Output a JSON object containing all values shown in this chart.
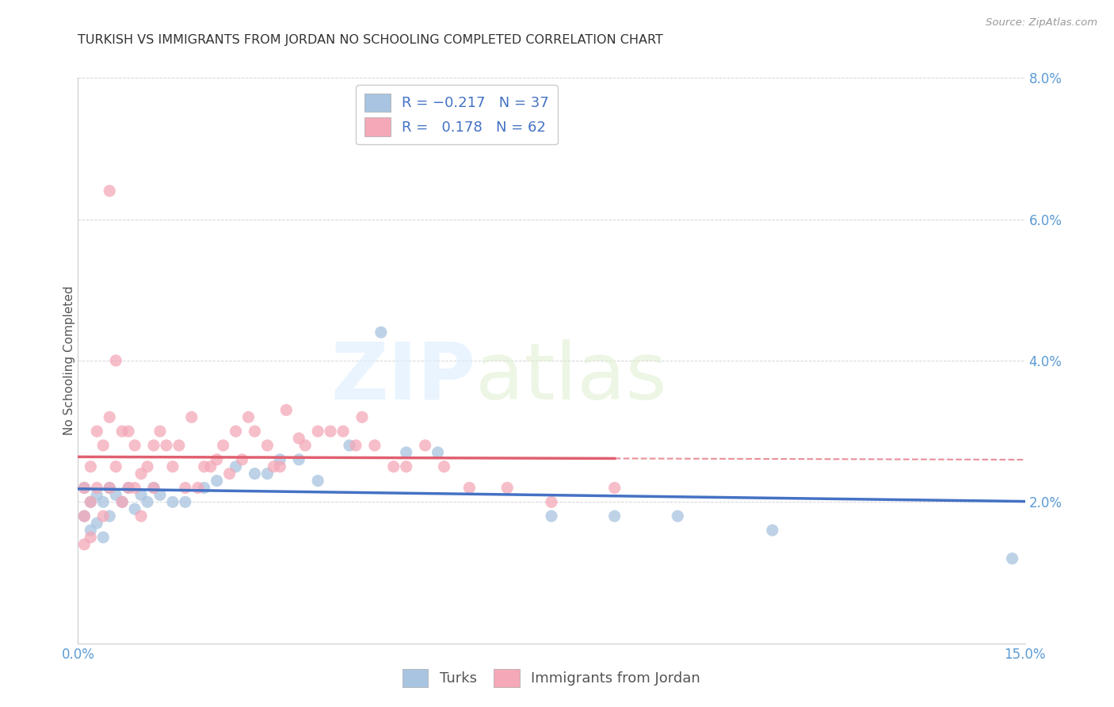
{
  "title": "TURKISH VS IMMIGRANTS FROM JORDAN NO SCHOOLING COMPLETED CORRELATION CHART",
  "source": "Source: ZipAtlas.com",
  "ylabel": "No Schooling Completed",
  "xlim": [
    0,
    0.15
  ],
  "ylim": [
    0,
    0.08
  ],
  "xticks": [
    0.0,
    0.05,
    0.1,
    0.15
  ],
  "xticklabels": [
    "0.0%",
    "",
    "",
    "15.0%"
  ],
  "yticks": [
    0.0,
    0.02,
    0.04,
    0.06,
    0.08
  ],
  "yticklabels": [
    "",
    "2.0%",
    "4.0%",
    "6.0%",
    "8.0%"
  ],
  "blue_R": -0.217,
  "blue_N": 37,
  "pink_R": 0.178,
  "pink_N": 62,
  "blue_scatter_color": "#a8c4e0",
  "pink_scatter_color": "#f4a8b8",
  "blue_line_color": "#4472c4",
  "pink_line_color": "#e06070",
  "legend_label_blue": "Turks",
  "legend_label_pink": "Immigrants from Jordan",
  "turks_x": [
    0.001,
    0.001,
    0.002,
    0.002,
    0.003,
    0.003,
    0.004,
    0.004,
    0.005,
    0.005,
    0.006,
    0.007,
    0.008,
    0.009,
    0.01,
    0.011,
    0.012,
    0.013,
    0.015,
    0.017,
    0.02,
    0.022,
    0.025,
    0.028,
    0.03,
    0.032,
    0.035,
    0.038,
    0.043,
    0.048,
    0.052,
    0.057,
    0.075,
    0.085,
    0.095,
    0.11,
    0.148
  ],
  "turks_y": [
    0.022,
    0.018,
    0.02,
    0.016,
    0.021,
    0.017,
    0.02,
    0.015,
    0.022,
    0.018,
    0.021,
    0.02,
    0.022,
    0.019,
    0.021,
    0.02,
    0.022,
    0.021,
    0.02,
    0.02,
    0.022,
    0.023,
    0.025,
    0.024,
    0.024,
    0.026,
    0.026,
    0.023,
    0.028,
    0.044,
    0.027,
    0.027,
    0.018,
    0.018,
    0.018,
    0.016,
    0.012
  ],
  "jordan_x": [
    0.001,
    0.001,
    0.001,
    0.002,
    0.002,
    0.002,
    0.003,
    0.003,
    0.004,
    0.004,
    0.005,
    0.005,
    0.005,
    0.006,
    0.006,
    0.007,
    0.007,
    0.008,
    0.008,
    0.009,
    0.009,
    0.01,
    0.01,
    0.011,
    0.012,
    0.012,
    0.013,
    0.014,
    0.015,
    0.016,
    0.017,
    0.018,
    0.019,
    0.02,
    0.021,
    0.022,
    0.023,
    0.024,
    0.025,
    0.026,
    0.027,
    0.028,
    0.03,
    0.031,
    0.032,
    0.033,
    0.035,
    0.036,
    0.038,
    0.04,
    0.042,
    0.044,
    0.045,
    0.047,
    0.05,
    0.052,
    0.055,
    0.058,
    0.062,
    0.068,
    0.075,
    0.085
  ],
  "jordan_y": [
    0.022,
    0.018,
    0.014,
    0.025,
    0.02,
    0.015,
    0.03,
    0.022,
    0.028,
    0.018,
    0.064,
    0.032,
    0.022,
    0.04,
    0.025,
    0.03,
    0.02,
    0.03,
    0.022,
    0.028,
    0.022,
    0.024,
    0.018,
    0.025,
    0.028,
    0.022,
    0.03,
    0.028,
    0.025,
    0.028,
    0.022,
    0.032,
    0.022,
    0.025,
    0.025,
    0.026,
    0.028,
    0.024,
    0.03,
    0.026,
    0.032,
    0.03,
    0.028,
    0.025,
    0.025,
    0.033,
    0.029,
    0.028,
    0.03,
    0.03,
    0.03,
    0.028,
    0.032,
    0.028,
    0.025,
    0.025,
    0.028,
    0.025,
    0.022,
    0.022,
    0.02,
    0.022
  ]
}
